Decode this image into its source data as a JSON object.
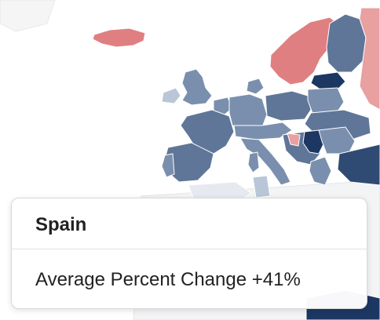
{
  "colors": {
    "light_blue": "#b8c6d8",
    "mid_blue": "#7a8fae",
    "steel_blue": "#5f7698",
    "dark_blue": "#2f4b73",
    "navy": "#1d3763",
    "red": "#e07f81",
    "light_red": "#e8a0a1",
    "land_base": "#f0f0f0"
  },
  "tooltip": {
    "country": "Spain",
    "metric_label": "Average Percent Change",
    "metric_value": "+41%",
    "metric_text": "Average Percent Change +41%"
  }
}
